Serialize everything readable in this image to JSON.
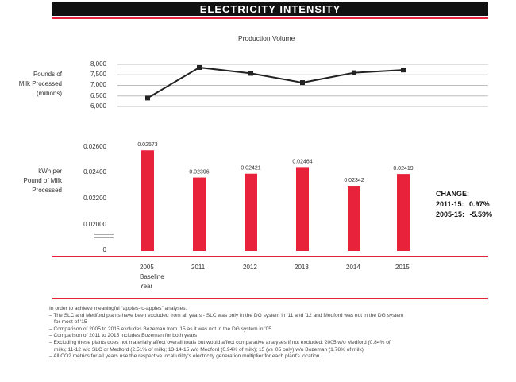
{
  "header": {
    "title": "ELECTRICITY INTENSITY",
    "accent": "#e8223a",
    "banner_bg": "#111111"
  },
  "chart_data": [
    {
      "type": "line",
      "title": "Production Volume",
      "ylabel_lines": [
        "Pounds of",
        "Milk Processed",
        "(millions)"
      ],
      "yticks": [
        "8,000",
        "7,500",
        "7,000",
        "6,500",
        "6,000"
      ],
      "ytick_values": [
        8000,
        7500,
        7000,
        6500,
        6000
      ],
      "ylim": [
        6000,
        8000
      ],
      "x": [
        "2005",
        "2011",
        "2012",
        "2013",
        "2014",
        "2015"
      ],
      "values": [
        6400,
        7850,
        7570,
        7130,
        7600,
        7730
      ],
      "grid": true,
      "color": "#222222"
    },
    {
      "type": "bar",
      "ylabel_lines": [
        "kWh per",
        "Pound of Milk",
        "Processed"
      ],
      "yticks": [
        "0.02600",
        "0.02400",
        "0.02200",
        "0.02000",
        "0"
      ],
      "categories": [
        "2005",
        "2011",
        "2012",
        "2013",
        "2014",
        "2015"
      ],
      "values": [
        0.02573,
        0.02396,
        0.02421,
        0.02464,
        0.02342,
        0.02419
      ],
      "data_labels": [
        "0.02573",
        "0.02396",
        "0.02421",
        "0.02464",
        "0.02342",
        "0.02419"
      ],
      "color": "#e8223a"
    }
  ],
  "xaxis": {
    "labels": [
      "2005",
      "2011",
      "2012",
      "2013",
      "2014",
      "2015"
    ],
    "baseline_lines": [
      "Baseline",
      "Year"
    ]
  },
  "change": {
    "heading": "CHANGE:",
    "rows": [
      {
        "label": "2011-15:",
        "value": "0.97%"
      },
      {
        "label": "2005-15:",
        "value": "-5.59%"
      }
    ]
  },
  "notes": [
    "In order to achieve meaningful “apples-to-apples” analyses:",
    "– The SLC and Medford plants have been excluded from all years - SLC was only in the DG system in '11 and '12 and Medford was not in the DG system",
    "    for most of '15",
    "– Comparison of 2005 to 2015 excludes Bozeman from '15 as it was not in the DG system in '05",
    "– Comparison of 2011 to 2015 includes Bozeman for both years",
    "– Excluding these plants does not materially affect overall totals but would affect comparative analyses if not excluded: 2005 w/o Medford (0.84% of",
    "    milk); 11-12 w/o SLC or Medford (2.51% of milk); 13-14-15 w/o Medford (0.94% of milk); 15 (vs '05 only) w/o Bozeman (1.78% of milk)",
    "– All CO2 metrics for all years use the respective local utility's electricity generation multiplier for each plant's location."
  ]
}
